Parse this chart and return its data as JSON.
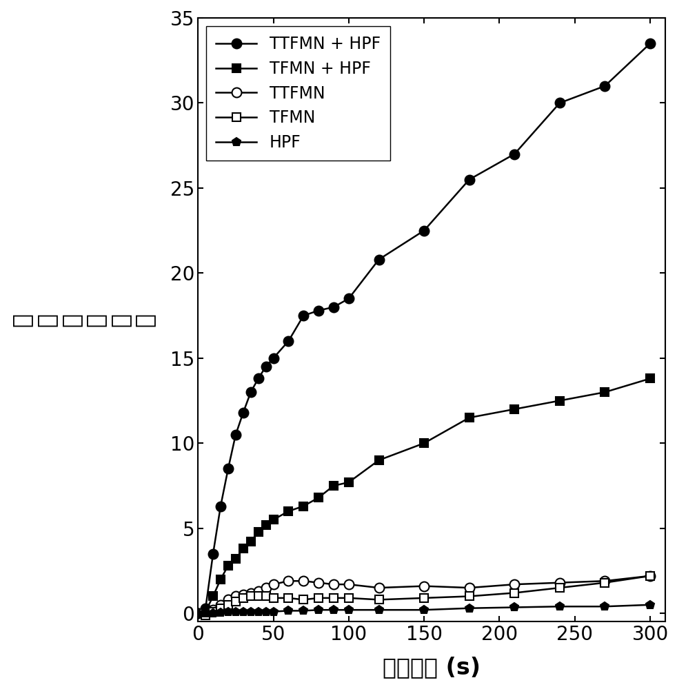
{
  "title": "",
  "xlabel": "光照时间 (s)",
  "ylabel_chars": [
    "荧",
    "光",
    "增",
    "强",
    "倍",
    "数"
  ],
  "xlim": [
    0,
    310
  ],
  "ylim": [
    -0.5,
    35
  ],
  "xticks": [
    0,
    50,
    100,
    150,
    200,
    250,
    300
  ],
  "yticks": [
    0,
    5,
    10,
    15,
    20,
    25,
    30,
    35
  ],
  "series": [
    {
      "label": "TTFMN + HPF",
      "x": [
        0,
        5,
        10,
        15,
        20,
        25,
        30,
        35,
        40,
        45,
        50,
        60,
        70,
        80,
        90,
        100,
        120,
        150,
        180,
        210,
        240,
        270,
        300
      ],
      "y": [
        0,
        0.3,
        3.5,
        6.3,
        8.5,
        10.5,
        11.8,
        13.0,
        13.8,
        14.5,
        15.0,
        16.0,
        17.5,
        17.8,
        18.0,
        18.5,
        20.8,
        22.5,
        25.5,
        27.0,
        30.0,
        31.0,
        33.5
      ],
      "marker": "o",
      "fillstyle": "full",
      "color": "#000000",
      "markersize": 10,
      "linewidth": 1.8
    },
    {
      "label": "TFMN + HPF",
      "x": [
        0,
        5,
        10,
        15,
        20,
        25,
        30,
        35,
        40,
        45,
        50,
        60,
        70,
        80,
        90,
        100,
        120,
        150,
        180,
        210,
        240,
        270,
        300
      ],
      "y": [
        0,
        0.1,
        1.0,
        2.0,
        2.8,
        3.2,
        3.8,
        4.2,
        4.8,
        5.2,
        5.5,
        6.0,
        6.3,
        6.8,
        7.5,
        7.7,
        9.0,
        10.0,
        11.5,
        12.0,
        12.5,
        13.0,
        13.8
      ],
      "marker": "s",
      "fillstyle": "full",
      "color": "#000000",
      "markersize": 9,
      "linewidth": 1.8
    },
    {
      "label": "TTFMN",
      "x": [
        0,
        5,
        10,
        15,
        20,
        25,
        30,
        35,
        40,
        45,
        50,
        60,
        70,
        80,
        90,
        100,
        120,
        150,
        180,
        210,
        240,
        270,
        300
      ],
      "y": [
        0,
        0.0,
        0.2,
        0.5,
        0.8,
        1.0,
        1.1,
        1.2,
        1.3,
        1.5,
        1.7,
        1.9,
        1.9,
        1.8,
        1.7,
        1.7,
        1.5,
        1.6,
        1.5,
        1.7,
        1.8,
        1.9,
        2.2
      ],
      "marker": "o",
      "fillstyle": "none",
      "color": "#000000",
      "markersize": 10,
      "linewidth": 1.8
    },
    {
      "label": "TFMN",
      "x": [
        0,
        5,
        10,
        15,
        20,
        25,
        30,
        35,
        40,
        45,
        50,
        60,
        70,
        80,
        90,
        100,
        120,
        150,
        180,
        210,
        240,
        270,
        300
      ],
      "y": [
        0,
        -0.1,
        0.1,
        0.3,
        0.5,
        0.7,
        0.9,
        1.0,
        1.0,
        1.0,
        0.9,
        0.9,
        0.8,
        0.9,
        0.9,
        0.9,
        0.8,
        0.9,
        1.0,
        1.2,
        1.5,
        1.8,
        2.2
      ],
      "marker": "s",
      "fillstyle": "none",
      "color": "#000000",
      "markersize": 9,
      "linewidth": 1.8
    },
    {
      "label": "HPF",
      "x": [
        0,
        5,
        10,
        15,
        20,
        25,
        30,
        35,
        40,
        45,
        50,
        60,
        70,
        80,
        90,
        100,
        120,
        150,
        180,
        210,
        240,
        270,
        300
      ],
      "y": [
        0,
        0.0,
        0.0,
        0.05,
        0.1,
        0.1,
        0.1,
        0.1,
        0.1,
        0.1,
        0.1,
        0.15,
        0.15,
        0.2,
        0.2,
        0.2,
        0.2,
        0.2,
        0.3,
        0.35,
        0.4,
        0.4,
        0.5
      ],
      "marker": "p",
      "fillstyle": "full",
      "color": "#000000",
      "markersize": 9,
      "linewidth": 1.8
    }
  ],
  "legend_loc": "upper left",
  "background_color": "#ffffff",
  "tick_fontsize": 20,
  "label_fontsize": 24,
  "legend_fontsize": 17
}
